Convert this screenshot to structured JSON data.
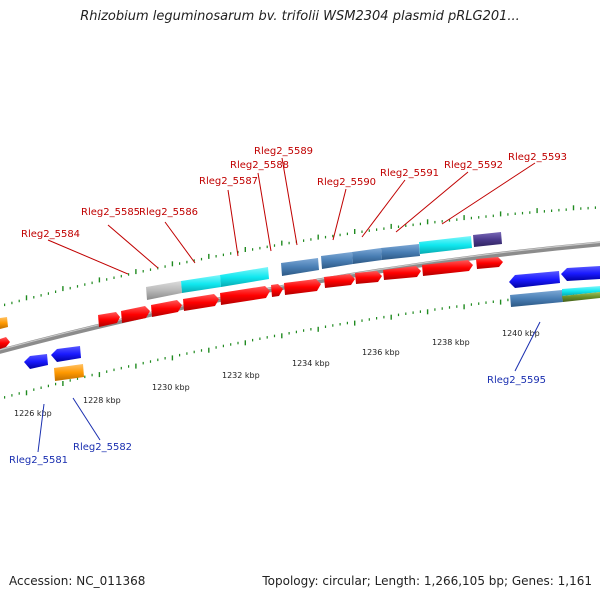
{
  "title": "Rhizobium leguminosarum bv. trifolii WSM2304 plasmid pRLG201...",
  "footer": {
    "accession": "Accession: NC_011368",
    "summary": "Topology: circular; Length: 1,266,105 bp; Genes: 1,161"
  },
  "axis": {
    "unit": "kbp",
    "tick_labels": [
      "1226 kbp",
      "1228 kbp",
      "1230 kbp",
      "1232 kbp",
      "1234 kbp",
      "1236 kbp",
      "1238 kbp",
      "1240 kbp"
    ]
  },
  "gene_labels": {
    "forward": [
      "Rleg2_5584",
      "Rleg2_5585",
      "Rleg2_5586",
      "Rleg2_5587",
      "Rleg2_5588",
      "Rleg2_5589",
      "Rleg2_5590",
      "Rleg2_5591",
      "Rleg2_5592",
      "Rleg2_5593"
    ],
    "reverse": [
      "Rleg2_5581",
      "Rleg2_5582",
      "Rleg2_5595"
    ]
  },
  "colors": {
    "backbone": "#8c8c8c",
    "ticks": "#1f8a1f",
    "cds": "#ff0000",
    "cds_reverse": "#1a1aff",
    "cog_cyan": "#11e8f0",
    "cog_steel": "#4a7fb5",
    "cog_gray": "#b8b8b8",
    "cog_purple": "#4b3a8c",
    "cog_orange": "#ff9900",
    "cog_olive": "#6a8f2a",
    "label_forward": "#c00000",
    "label_reverse": "#1a2fb0"
  }
}
